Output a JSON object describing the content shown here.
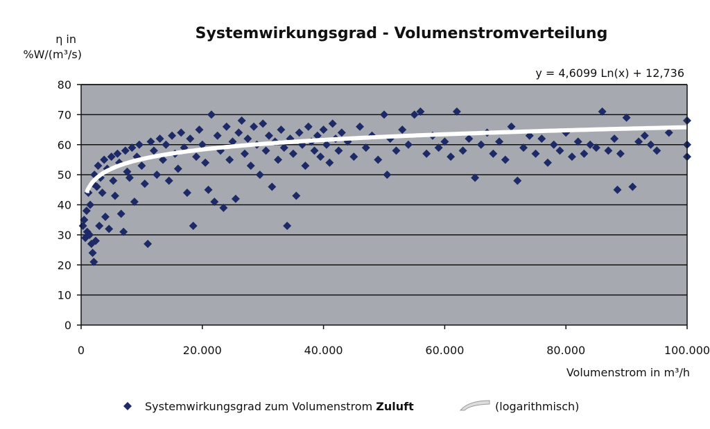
{
  "chart_data": {
    "type": "scatter",
    "title": "Systemwirkungsgrad - Volumenstromverteilung",
    "ylabel_line1": "η in",
    "ylabel_line2": "%W/(m³/s)",
    "xlabel": "Volumenstrom in m³/h",
    "equation": "y = 4,6099 Ln(x) + 12,736",
    "xlim": [
      0,
      100000
    ],
    "ylim": [
      0,
      80
    ],
    "x_ticks": [
      0,
      20000,
      40000,
      60000,
      80000,
      100000
    ],
    "x_tick_labels": [
      "0",
      "20.000",
      "40.000",
      "60.000",
      "80.000",
      "100.000"
    ],
    "y_ticks": [
      0,
      10,
      20,
      30,
      40,
      50,
      60,
      70,
      80
    ],
    "y_tick_labels": [
      "0",
      "10",
      "20",
      "30",
      "40",
      "50",
      "60",
      "70",
      "80"
    ],
    "grid": true,
    "legend_placement": "bottom",
    "colors": {
      "plot_background": "#a6aab0",
      "points": "#1e2a66",
      "trendline": "#ffffff",
      "gridline": "#111111"
    },
    "series": [
      {
        "name_prefix": "Systemwirkungsgrad zum Volumenstrom ",
        "name_bold": "Zuluft",
        "kind": "scatter",
        "points": [
          [
            300,
            33
          ],
          [
            500,
            35
          ],
          [
            700,
            29
          ],
          [
            900,
            38
          ],
          [
            1000,
            31
          ],
          [
            1200,
            44
          ],
          [
            1400,
            30
          ],
          [
            1500,
            40
          ],
          [
            1700,
            27
          ],
          [
            1900,
            24
          ],
          [
            2000,
            47
          ],
          [
            2100,
            21
          ],
          [
            2200,
            50
          ],
          [
            2400,
            28
          ],
          [
            2600,
            46
          ],
          [
            2800,
            53
          ],
          [
            3000,
            33
          ],
          [
            3200,
            49
          ],
          [
            3500,
            44
          ],
          [
            3800,
            55
          ],
          [
            4000,
            36
          ],
          [
            4300,
            52
          ],
          [
            4600,
            32
          ],
          [
            5000,
            56
          ],
          [
            5300,
            48
          ],
          [
            5600,
            43
          ],
          [
            6000,
            57
          ],
          [
            6300,
            54
          ],
          [
            6600,
            37
          ],
          [
            7000,
            31
          ],
          [
            7300,
            58
          ],
          [
            7600,
            51
          ],
          [
            8000,
            49
          ],
          [
            8400,
            59
          ],
          [
            8800,
            41
          ],
          [
            9200,
            56
          ],
          [
            9600,
            60
          ],
          [
            10000,
            53
          ],
          [
            10500,
            47
          ],
          [
            11000,
            27
          ],
          [
            11500,
            61
          ],
          [
            12000,
            58
          ],
          [
            12500,
            50
          ],
          [
            13000,
            62
          ],
          [
            13500,
            55
          ],
          [
            14000,
            60
          ],
          [
            14500,
            48
          ],
          [
            15000,
            63
          ],
          [
            15500,
            57
          ],
          [
            16000,
            52
          ],
          [
            16500,
            64
          ],
          [
            17000,
            59
          ],
          [
            17500,
            44
          ],
          [
            18000,
            62
          ],
          [
            18500,
            33
          ],
          [
            19000,
            56
          ],
          [
            19500,
            65
          ],
          [
            20000,
            60
          ],
          [
            20500,
            54
          ],
          [
            21000,
            45
          ],
          [
            21500,
            70
          ],
          [
            22000,
            41
          ],
          [
            22500,
            63
          ],
          [
            23000,
            58
          ],
          [
            23500,
            39
          ],
          [
            24000,
            66
          ],
          [
            24500,
            55
          ],
          [
            25000,
            61
          ],
          [
            25500,
            42
          ],
          [
            26000,
            64
          ],
          [
            26500,
            68
          ],
          [
            27000,
            57
          ],
          [
            27500,
            62
          ],
          [
            28000,
            53
          ],
          [
            28500,
            66
          ],
          [
            29000,
            60
          ],
          [
            29500,
            50
          ],
          [
            30000,
            67
          ],
          [
            30500,
            58
          ],
          [
            31000,
            63
          ],
          [
            31500,
            46
          ],
          [
            32000,
            61
          ],
          [
            32500,
            55
          ],
          [
            33000,
            65
          ],
          [
            33500,
            59
          ],
          [
            34000,
            33
          ],
          [
            34500,
            62
          ],
          [
            35000,
            57
          ],
          [
            35500,
            43
          ],
          [
            36000,
            64
          ],
          [
            36500,
            60
          ],
          [
            37000,
            53
          ],
          [
            37500,
            66
          ],
          [
            38000,
            61
          ],
          [
            38500,
            58
          ],
          [
            39000,
            63
          ],
          [
            39500,
            56
          ],
          [
            40000,
            65
          ],
          [
            40500,
            60
          ],
          [
            41000,
            54
          ],
          [
            41500,
            67
          ],
          [
            42000,
            62
          ],
          [
            42500,
            58
          ],
          [
            43000,
            64
          ],
          [
            44000,
            61
          ],
          [
            45000,
            56
          ],
          [
            46000,
            66
          ],
          [
            47000,
            59
          ],
          [
            48000,
            63
          ],
          [
            49000,
            55
          ],
          [
            50000,
            70
          ],
          [
            50500,
            50
          ],
          [
            51000,
            62
          ],
          [
            52000,
            58
          ],
          [
            53000,
            65
          ],
          [
            54000,
            60
          ],
          [
            55000,
            70
          ],
          [
            56000,
            71
          ],
          [
            57000,
            57
          ],
          [
            58000,
            63
          ],
          [
            59000,
            59
          ],
          [
            60000,
            61
          ],
          [
            61000,
            56
          ],
          [
            62000,
            71
          ],
          [
            63000,
            58
          ],
          [
            64000,
            62
          ],
          [
            65000,
            49
          ],
          [
            66000,
            60
          ],
          [
            67000,
            64
          ],
          [
            68000,
            57
          ],
          [
            69000,
            61
          ],
          [
            70000,
            55
          ],
          [
            71000,
            66
          ],
          [
            72000,
            48
          ],
          [
            73000,
            59
          ],
          [
            74000,
            63
          ],
          [
            75000,
            57
          ],
          [
            76000,
            62
          ],
          [
            77000,
            54
          ],
          [
            78000,
            60
          ],
          [
            79000,
            58
          ],
          [
            80000,
            64
          ],
          [
            81000,
            56
          ],
          [
            82000,
            61
          ],
          [
            83000,
            57
          ],
          [
            84000,
            60
          ],
          [
            85000,
            59
          ],
          [
            86000,
            71
          ],
          [
            87000,
            58
          ],
          [
            88000,
            62
          ],
          [
            88500,
            45
          ],
          [
            89000,
            57
          ],
          [
            90000,
            69
          ],
          [
            91000,
            46
          ],
          [
            92000,
            61
          ],
          [
            93000,
            63
          ],
          [
            94000,
            60
          ],
          [
            95000,
            58
          ],
          [
            97000,
            64
          ],
          [
            100000,
            68
          ],
          [
            100000,
            56
          ],
          [
            100000,
            60
          ]
        ]
      },
      {
        "name": "(logarithmisch)",
        "kind": "trendline",
        "equation_a": 4.6099,
        "equation_b": 12.736
      }
    ]
  }
}
